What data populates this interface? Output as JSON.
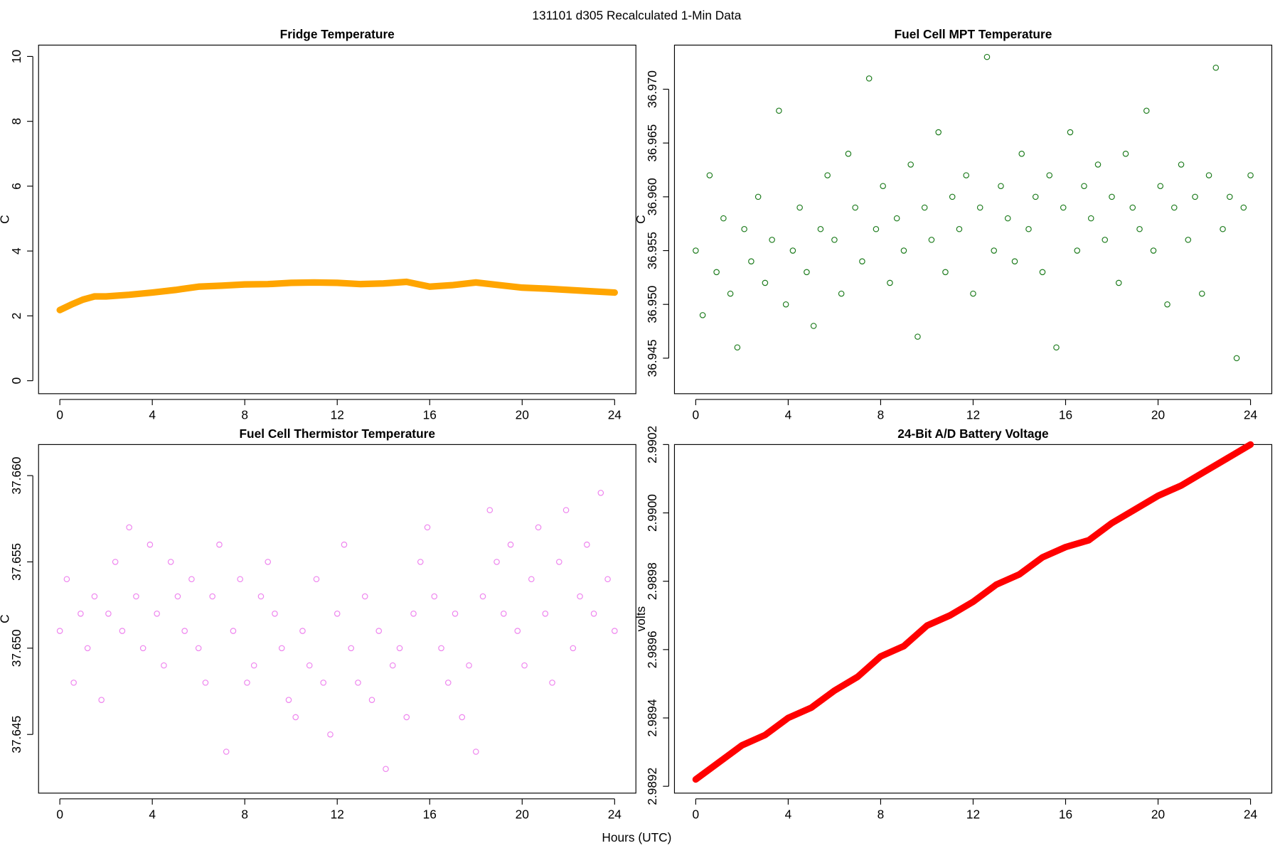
{
  "title": "131101   d305   Recalculated 1-Min Data",
  "xlabel": "Hours (UTC)",
  "chart_data": [
    {
      "type": "line",
      "title": "Fridge Temperature",
      "ylabel": "C",
      "color": "#ffa500",
      "x": [
        0,
        0.5,
        1,
        1.5,
        2,
        3,
        4,
        5,
        6,
        7,
        8,
        9,
        10,
        11,
        12,
        13,
        14,
        15,
        16,
        17,
        18,
        19,
        20,
        21,
        22,
        23,
        24
      ],
      "values": [
        2.18,
        2.35,
        2.5,
        2.6,
        2.6,
        2.65,
        2.72,
        2.8,
        2.9,
        2.93,
        2.97,
        2.98,
        3.02,
        3.03,
        3.02,
        2.98,
        3.0,
        3.05,
        2.9,
        2.95,
        3.03,
        2.95,
        2.87,
        2.84,
        2.8,
        2.76,
        2.72
      ],
      "xlim": [
        -0.92,
        24.92
      ],
      "xticks": [
        0,
        4,
        8,
        12,
        16,
        20,
        24
      ],
      "ylim": [
        -0.4,
        10.35
      ],
      "yticks": [
        0,
        2,
        4,
        6,
        8,
        10
      ]
    },
    {
      "type": "scatter",
      "title": "Fuel Cell MPT Temperature",
      "ylabel": "C",
      "color": "#1a7a1a",
      "x": [
        0,
        0.3,
        0.6,
        0.9,
        1.2,
        1.5,
        1.8,
        2.1,
        2.4,
        2.7,
        3,
        3.3,
        3.6,
        3.9,
        4.2,
        4.5,
        4.8,
        5.1,
        5.4,
        5.7,
        6,
        6.3,
        6.6,
        6.9,
        7.2,
        7.5,
        7.8,
        8.1,
        8.4,
        8.7,
        9,
        9.3,
        9.6,
        9.9,
        10.2,
        10.5,
        10.8,
        11.1,
        11.4,
        11.7,
        12,
        12.3,
        12.6,
        12.9,
        13.2,
        13.5,
        13.8,
        14.1,
        14.4,
        14.7,
        15,
        15.3,
        15.6,
        15.9,
        16.2,
        16.5,
        16.8,
        17.1,
        17.4,
        17.7,
        18,
        18.3,
        18.6,
        18.9,
        19.2,
        19.5,
        19.8,
        20.1,
        20.4,
        20.7,
        21,
        21.3,
        21.6,
        21.9,
        22.2,
        22.5,
        22.8,
        23.1,
        23.4,
        23.7,
        24
      ],
      "values": [
        36.955,
        36.949,
        36.962,
        36.953,
        36.958,
        36.951,
        36.946,
        36.957,
        36.954,
        36.96,
        36.952,
        36.956,
        36.968,
        36.95,
        36.955,
        36.959,
        36.953,
        36.948,
        36.957,
        36.962,
        36.956,
        36.951,
        36.964,
        36.959,
        36.954,
        36.971,
        36.957,
        36.961,
        36.952,
        36.958,
        36.955,
        36.963,
        36.947,
        36.959,
        36.956,
        36.966,
        36.953,
        36.96,
        36.957,
        36.962,
        36.951,
        36.959,
        36.973,
        36.955,
        36.961,
        36.958,
        36.954,
        36.964,
        36.957,
        36.96,
        36.953,
        36.962,
        36.946,
        36.959,
        36.966,
        36.955,
        36.961,
        36.958,
        36.963,
        36.956,
        36.96,
        36.952,
        36.964,
        36.959,
        36.957,
        36.968,
        36.955,
        36.961,
        36.95,
        36.959,
        36.963,
        36.956,
        36.96,
        36.951,
        36.962,
        36.972,
        36.957,
        36.96,
        36.945,
        36.959,
        36.962
      ],
      "xlim": [
        -0.92,
        24.92
      ],
      "xticks": [
        0,
        4,
        8,
        12,
        16,
        20,
        24
      ],
      "ylim": [
        36.9417,
        36.9741
      ],
      "yticks": [
        36.945,
        {
          "value": 36.95,
          "label": "36.950"
        },
        36.955,
        {
          "value": 36.96,
          "label": "36.960"
        },
        36.965,
        {
          "value": 36.97,
          "label": "36.970"
        }
      ]
    },
    {
      "type": "scatter",
      "title": "Fuel Cell Thermistor Temperature",
      "ylabel": "C",
      "color": "#ee82ee",
      "x": [
        0,
        0.3,
        0.6,
        0.9,
        1.2,
        1.5,
        1.8,
        2.1,
        2.4,
        2.7,
        3,
        3.3,
        3.6,
        3.9,
        4.2,
        4.5,
        4.8,
        5.1,
        5.4,
        5.7,
        6,
        6.3,
        6.6,
        6.9,
        7.2,
        7.5,
        7.8,
        8.1,
        8.4,
        8.7,
        9,
        9.3,
        9.6,
        9.9,
        10.2,
        10.5,
        10.8,
        11.1,
        11.4,
        11.7,
        12,
        12.3,
        12.6,
        12.9,
        13.2,
        13.5,
        13.8,
        14.1,
        14.4,
        14.7,
        15,
        15.3,
        15.6,
        15.9,
        16.2,
        16.5,
        16.8,
        17.1,
        17.4,
        17.7,
        18,
        18.3,
        18.6,
        18.9,
        19.2,
        19.5,
        19.8,
        20.1,
        20.4,
        20.7,
        21,
        21.3,
        21.6,
        21.9,
        22.2,
        22.5,
        22.8,
        23.1,
        23.4,
        23.7,
        24
      ],
      "values": [
        37.651,
        37.654,
        37.648,
        37.652,
        37.65,
        37.653,
        37.647,
        37.652,
        37.655,
        37.651,
        37.657,
        37.653,
        37.65,
        37.656,
        37.652,
        37.649,
        37.655,
        37.653,
        37.651,
        37.654,
        37.65,
        37.648,
        37.653,
        37.656,
        37.644,
        37.651,
        37.654,
        37.648,
        37.649,
        37.653,
        37.655,
        37.652,
        37.65,
        37.647,
        37.646,
        37.651,
        37.649,
        37.654,
        37.648,
        37.645,
        37.652,
        37.656,
        37.65,
        37.648,
        37.653,
        37.647,
        37.651,
        37.643,
        37.649,
        37.65,
        37.646,
        37.652,
        37.655,
        37.657,
        37.653,
        37.65,
        37.648,
        37.652,
        37.646,
        37.649,
        37.644,
        37.653,
        37.658,
        37.655,
        37.652,
        37.656,
        37.651,
        37.649,
        37.654,
        37.657,
        37.652,
        37.648,
        37.655,
        37.658,
        37.65,
        37.653,
        37.656,
        37.652,
        37.659,
        37.654,
        37.651
      ],
      "xlim": [
        -0.92,
        24.92
      ],
      "xticks": [
        0,
        4,
        8,
        12,
        16,
        20,
        24
      ],
      "ylim": [
        37.6416,
        37.6618
      ],
      "yticks": [
        37.645,
        {
          "value": 37.65,
          "label": "37.650"
        },
        37.655,
        {
          "value": 37.66,
          "label": "37.660"
        }
      ]
    },
    {
      "type": "line",
      "title": "24-Bit A/D Battery Voltage",
      "ylabel": "volts",
      "color": "#ff0000",
      "x": [
        0,
        1,
        2,
        3,
        4,
        5,
        6,
        7,
        8,
        9,
        10,
        11,
        12,
        13,
        14,
        15,
        16,
        17,
        18,
        19,
        20,
        21,
        22,
        23,
        24
      ],
      "values": [
        2.98922,
        2.98927,
        2.98932,
        2.98935,
        2.9894,
        2.98943,
        2.98948,
        2.98952,
        2.98958,
        2.98961,
        2.98967,
        2.9897,
        2.98974,
        2.98979,
        2.98982,
        2.98987,
        2.9899,
        2.98992,
        2.98997,
        2.99001,
        2.99005,
        2.99008,
        2.99012,
        2.99016,
        2.9902
      ],
      "xlim": [
        -0.92,
        24.92
      ],
      "xticks": [
        0,
        4,
        8,
        12,
        16,
        20,
        24
      ],
      "ylim": [
        2.98918,
        2.9902
      ],
      "yticks": [
        2.9892,
        2.9894,
        2.9896,
        2.9898,
        {
          "value": 2.99,
          "label": "2.9900"
        },
        2.9902
      ]
    }
  ]
}
